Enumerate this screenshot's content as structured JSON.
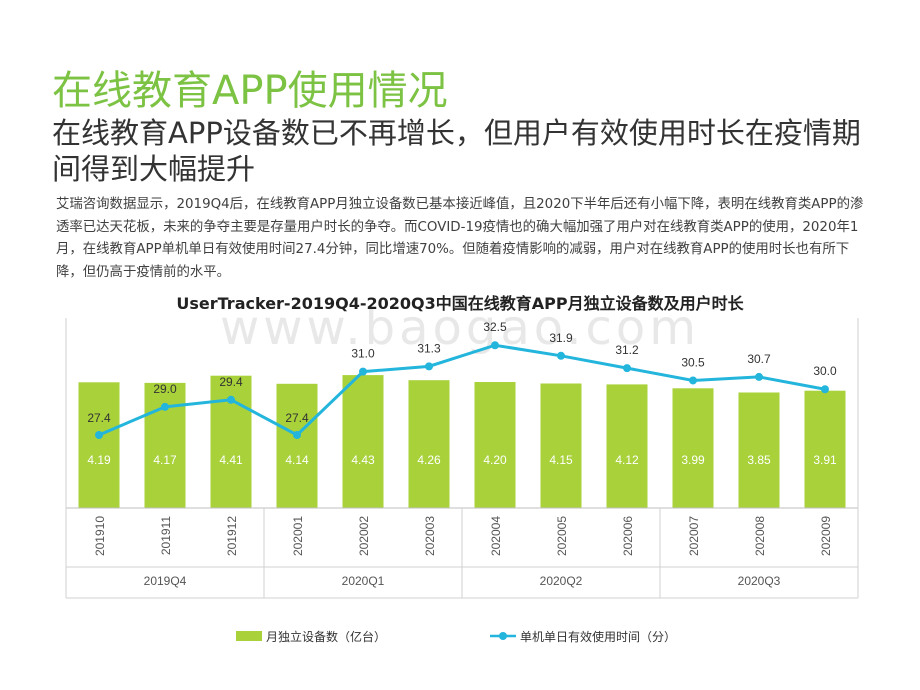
{
  "slide": {
    "title": "在线教育APP使用情况",
    "subtitle": "在线教育APP设备数已不再增长，但用户有效使用时长在疫情期间得到大幅提升",
    "description": "艾瑞咨询数据显示，2019Q4后，在线教育APP月独立设备数已基本接近峰值，且2020下半年后还有小幅下降，表明在线教育类APP的渗透率已达天花板，未来的争夺主要是存量用户时长的争夺。而COVID-19疫情也的确大幅加强了用户对在线教育类APP的使用，2020年1月，在线教育APP单机单日有效使用时间27.4分钟，同比增速70%。但随着疫情影响的减弱，用户对在线教育APP的使用时长也有所下降，但仍高于疫情前的水平。",
    "watermark": "www.baogao.com"
  },
  "chart_data": {
    "type": "bar",
    "title": "UserTracker-2019Q4-2020Q3中国在线教育APP月独立设备数及用户时长",
    "categories": [
      "201910",
      "201911",
      "201912",
      "202001",
      "202002",
      "202003",
      "202004",
      "202005",
      "202006",
      "202007",
      "202008",
      "202009"
    ],
    "quarters": [
      {
        "label": "2019Q4",
        "span": 3
      },
      {
        "label": "2020Q1",
        "span": 3
      },
      {
        "label": "2020Q2",
        "span": 3
      },
      {
        "label": "2020Q3",
        "span": 3
      }
    ],
    "series": [
      {
        "name": "月独立设备数（亿台）",
        "type": "bar",
        "color": "#a8d13a",
        "values": [
          4.19,
          4.17,
          4.41,
          4.14,
          4.43,
          4.26,
          4.2,
          4.15,
          4.12,
          3.99,
          3.85,
          3.91
        ]
      },
      {
        "name": "单机单日有效使用时间（分）",
        "type": "line",
        "color": "#23b5dc",
        "values": [
          27.4,
          29.0,
          29.4,
          27.4,
          31.0,
          31.3,
          32.5,
          31.9,
          31.2,
          30.5,
          30.7,
          30.0
        ]
      }
    ],
    "legend_position": "bottom",
    "grid": false
  }
}
